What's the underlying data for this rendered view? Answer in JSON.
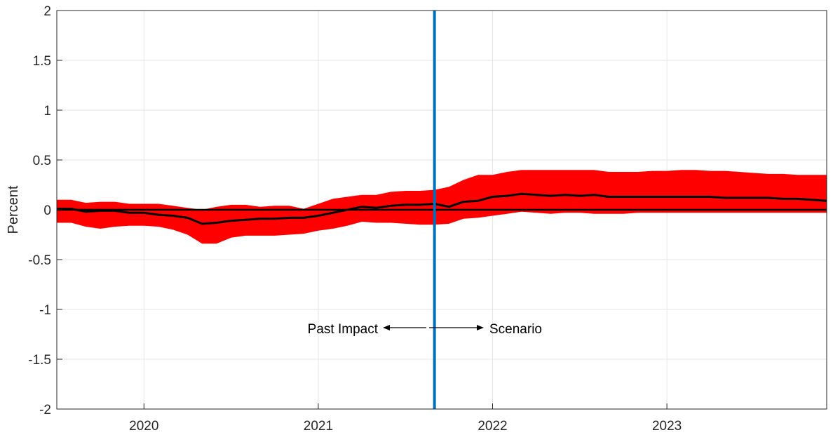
{
  "chart_data": {
    "type": "area",
    "title": "",
    "xlabel": "",
    "ylabel": "Percent",
    "xlim": [
      "2019-07",
      "2023-12"
    ],
    "ylim": [
      -2,
      2
    ],
    "yticks": [
      2,
      1.5,
      1,
      0.5,
      0,
      -0.5,
      -1,
      -1.5,
      -2
    ],
    "ytick_labels": [
      "2",
      "1.5",
      "1",
      "0.5",
      "0",
      "-0.5",
      "-1",
      "-1.5",
      "-2"
    ],
    "xticks": [
      "2020-01",
      "2021-01",
      "2022-01",
      "2023-01"
    ],
    "xtick_labels": [
      "2020",
      "2021",
      "2022",
      "2023"
    ],
    "grid": true,
    "colors": {
      "band": "#ff0000",
      "median": "#000000",
      "divider": "#0072bd",
      "zero_line": "#000000",
      "grid": "#e6e6e6",
      "axis": "#262626"
    },
    "x": [
      "2019-07",
      "2019-08",
      "2019-09",
      "2019-10",
      "2019-11",
      "2019-12",
      "2020-01",
      "2020-02",
      "2020-03",
      "2020-04",
      "2020-05",
      "2020-06",
      "2020-07",
      "2020-08",
      "2020-09",
      "2020-10",
      "2020-11",
      "2020-12",
      "2021-01",
      "2021-02",
      "2021-03",
      "2021-04",
      "2021-05",
      "2021-06",
      "2021-07",
      "2021-08",
      "2021-09",
      "2021-10",
      "2021-11",
      "2021-12",
      "2022-01",
      "2022-02",
      "2022-03",
      "2022-04",
      "2022-05",
      "2022-06",
      "2022-07",
      "2022-08",
      "2022-09",
      "2022-10",
      "2022-11",
      "2022-12",
      "2023-01",
      "2023-02",
      "2023-03",
      "2023-04",
      "2023-05",
      "2023-06",
      "2023-07",
      "2023-08",
      "2023-09",
      "2023-10",
      "2023-11",
      "2023-12"
    ],
    "series": [
      {
        "role": "median",
        "values": [
          0.01,
          0.01,
          -0.02,
          -0.01,
          -0.01,
          -0.03,
          -0.03,
          -0.05,
          -0.06,
          -0.08,
          -0.14,
          -0.13,
          -0.11,
          -0.1,
          -0.09,
          -0.09,
          -0.08,
          -0.08,
          -0.06,
          -0.03,
          0,
          0.03,
          0.02,
          0.04,
          0.05,
          0.05,
          0.06,
          0.03,
          0.08,
          0.09,
          0.13,
          0.14,
          0.16,
          0.15,
          0.14,
          0.15,
          0.14,
          0.15,
          0.13,
          0.13,
          0.13,
          0.13,
          0.13,
          0.13,
          0.13,
          0.13,
          0.12,
          0.12,
          0.12,
          0.12,
          0.11,
          0.11,
          0.1,
          0.09
        ]
      },
      {
        "role": "band-upper",
        "values": [
          0.1,
          0.1,
          0.07,
          0.08,
          0.08,
          0.06,
          0.06,
          0.06,
          0.04,
          0.02,
          0,
          0.03,
          0.05,
          0.05,
          0.03,
          0.04,
          0.04,
          0.01,
          0.06,
          0.11,
          0.13,
          0.15,
          0.15,
          0.18,
          0.19,
          0.19,
          0.2,
          0.23,
          0.3,
          0.35,
          0.35,
          0.38,
          0.4,
          0.4,
          0.4,
          0.4,
          0.4,
          0.4,
          0.38,
          0.38,
          0.38,
          0.39,
          0.39,
          0.4,
          0.4,
          0.39,
          0.39,
          0.38,
          0.37,
          0.36,
          0.36,
          0.35,
          0.35,
          0.35
        ]
      },
      {
        "role": "band-lower",
        "values": [
          -0.13,
          -0.13,
          -0.17,
          -0.19,
          -0.17,
          -0.16,
          -0.16,
          -0.17,
          -0.2,
          -0.25,
          -0.34,
          -0.34,
          -0.28,
          -0.26,
          -0.26,
          -0.26,
          -0.25,
          -0.24,
          -0.21,
          -0.19,
          -0.16,
          -0.12,
          -0.13,
          -0.13,
          -0.14,
          -0.15,
          -0.15,
          -0.14,
          -0.09,
          -0.08,
          -0.06,
          -0.04,
          -0.02,
          -0.03,
          -0.04,
          -0.03,
          -0.03,
          -0.04,
          -0.04,
          -0.04,
          -0.03,
          -0.03,
          -0.03,
          -0.03,
          -0.03,
          -0.03,
          -0.03,
          -0.03,
          -0.03,
          -0.03,
          -0.03,
          -0.03,
          -0.03,
          -0.03
        ]
      }
    ],
    "zero_line": 0,
    "divider_x": "2021-09",
    "annotations": [
      {
        "text": "Past Impact",
        "arrow": "left"
      },
      {
        "text": "Scenario",
        "arrow": "right"
      }
    ]
  }
}
